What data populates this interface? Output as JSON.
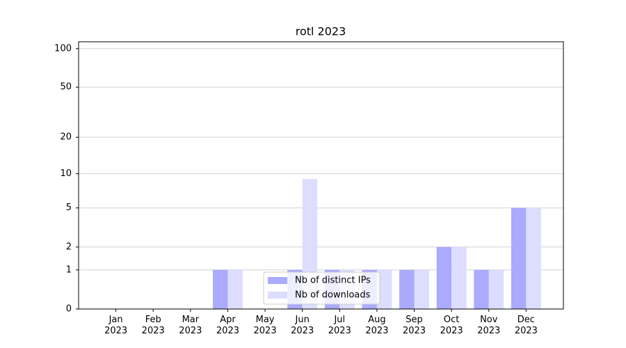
{
  "chart_data": {
    "type": "bar",
    "title": "rotl 2023",
    "categories": [
      "Jan\n2023",
      "Feb\n2023",
      "Mar\n2023",
      "Apr\n2023",
      "May\n2023",
      "Jun\n2023",
      "Jul\n2023",
      "Aug\n2023",
      "Sep\n2023",
      "Oct\n2023",
      "Nov\n2023",
      "Dec\n2023"
    ],
    "series": [
      {
        "name": "Nb of distinct IPs",
        "color": "#aaaaff",
        "values": [
          0,
          0,
          0,
          1,
          0,
          1,
          1,
          1,
          1,
          2,
          1,
          5
        ]
      },
      {
        "name": "Nb of downloads",
        "color": "#ddddff",
        "values": [
          0,
          0,
          0,
          1,
          0,
          9,
          1,
          1,
          1,
          2,
          1,
          5
        ]
      }
    ],
    "yscale": "log1p",
    "ylim": [
      0,
      113
    ],
    "yticks": [
      0,
      1,
      2,
      5,
      10,
      20,
      50,
      100
    ],
    "grid": true,
    "legend": "lower center"
  }
}
